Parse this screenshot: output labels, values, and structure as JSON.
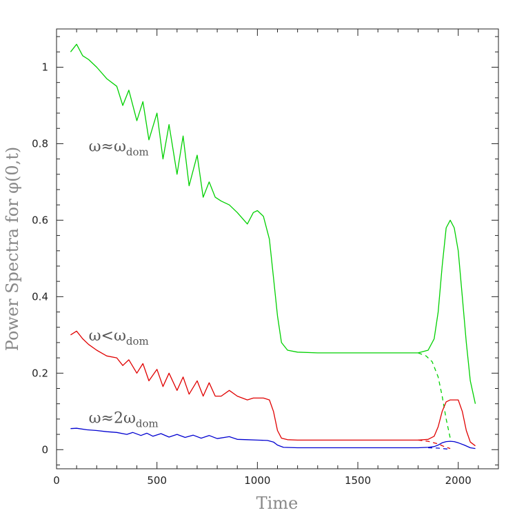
{
  "chart_data": {
    "type": "line",
    "title": "",
    "xlabel": "Time",
    "ylabel": "Power Spectra for φ(0,t)",
    "xlim": [
      0,
      2200
    ],
    "ylim": [
      -0.05,
      1.1
    ],
    "x_ticks": [
      0,
      500,
      1000,
      1500,
      2000
    ],
    "y_ticks": [
      0,
      0.2,
      0.4,
      0.6,
      0.8,
      1
    ],
    "x_tick_labels": [
      "0",
      "500",
      "1000",
      "1500",
      "2000"
    ],
    "y_tick_labels": [
      "0",
      "0.2",
      "0.4",
      "0.6",
      "0.8",
      "1"
    ],
    "grid": false,
    "annotations": [
      {
        "main": "ω≈ω",
        "sub": "dom",
        "series": "green"
      },
      {
        "main": "ω<ω",
        "sub": "dom",
        "series": "red"
      },
      {
        "main": "ω≈2ω",
        "sub": "dom",
        "series": "blue"
      }
    ],
    "series": [
      {
        "color": "#00d000",
        "style": "solid",
        "x": [
          70,
          100,
          130,
          160,
          200,
          250,
          300,
          330,
          360,
          400,
          430,
          460,
          500,
          530,
          560,
          600,
          630,
          660,
          700,
          730,
          760,
          790,
          820,
          860,
          900,
          950,
          980,
          1000,
          1030,
          1060,
          1080,
          1100,
          1120,
          1150,
          1200,
          1300,
          1500,
          1700,
          1800,
          1850,
          1880,
          1900,
          1920,
          1940,
          1960,
          1980,
          2000,
          2020,
          2040,
          2060,
          2085
        ],
        "y": [
          1.04,
          1.06,
          1.03,
          1.02,
          1.0,
          0.97,
          0.95,
          0.9,
          0.94,
          0.86,
          0.91,
          0.81,
          0.88,
          0.76,
          0.85,
          0.72,
          0.82,
          0.69,
          0.77,
          0.66,
          0.7,
          0.66,
          0.65,
          0.64,
          0.62,
          0.59,
          0.62,
          0.625,
          0.61,
          0.55,
          0.45,
          0.35,
          0.28,
          0.26,
          0.255,
          0.253,
          0.253,
          0.253,
          0.253,
          0.26,
          0.29,
          0.36,
          0.48,
          0.58,
          0.6,
          0.58,
          0.52,
          0.4,
          0.28,
          0.18,
          0.12
        ]
      },
      {
        "color": "#00d000",
        "style": "dashed",
        "x": [
          1800,
          1840,
          1870,
          1900,
          1920,
          1940,
          1960
        ],
        "y": [
          0.253,
          0.245,
          0.23,
          0.19,
          0.14,
          0.08,
          0.03
        ]
      },
      {
        "color": "#e00000",
        "style": "solid",
        "x": [
          70,
          100,
          130,
          160,
          200,
          250,
          300,
          330,
          360,
          400,
          430,
          460,
          500,
          530,
          560,
          600,
          630,
          660,
          700,
          730,
          760,
          790,
          820,
          860,
          900,
          950,
          980,
          1000,
          1030,
          1060,
          1080,
          1100,
          1120,
          1150,
          1200,
          1300,
          1500,
          1700,
          1800,
          1850,
          1880,
          1900,
          1920,
          1940,
          1960,
          1980,
          2000,
          2020,
          2040,
          2060,
          2085
        ],
        "y": [
          0.3,
          0.31,
          0.29,
          0.275,
          0.26,
          0.245,
          0.24,
          0.22,
          0.235,
          0.2,
          0.225,
          0.18,
          0.21,
          0.165,
          0.2,
          0.155,
          0.19,
          0.145,
          0.18,
          0.14,
          0.175,
          0.14,
          0.14,
          0.155,
          0.14,
          0.13,
          0.135,
          0.135,
          0.135,
          0.13,
          0.1,
          0.05,
          0.03,
          0.026,
          0.025,
          0.025,
          0.025,
          0.025,
          0.025,
          0.027,
          0.035,
          0.06,
          0.1,
          0.125,
          0.13,
          0.13,
          0.13,
          0.1,
          0.05,
          0.02,
          0.01
        ]
      },
      {
        "color": "#e00000",
        "style": "dashed",
        "x": [
          1800,
          1850,
          1900,
          1930,
          1960
        ],
        "y": [
          0.025,
          0.022,
          0.015,
          0.008,
          0.003
        ]
      },
      {
        "color": "#0000d0",
        "style": "solid",
        "x": [
          70,
          100,
          150,
          200,
          250,
          300,
          350,
          380,
          420,
          450,
          480,
          520,
          560,
          600,
          640,
          680,
          720,
          760,
          800,
          860,
          900,
          950,
          1000,
          1050,
          1080,
          1100,
          1130,
          1200,
          1300,
          1500,
          1700,
          1800,
          1850,
          1880,
          1900,
          1920,
          1940,
          1960,
          1980,
          2000,
          2030,
          2060,
          2085
        ],
        "y": [
          0.055,
          0.056,
          0.052,
          0.05,
          0.047,
          0.045,
          0.04,
          0.045,
          0.037,
          0.043,
          0.035,
          0.042,
          0.033,
          0.04,
          0.032,
          0.038,
          0.03,
          0.037,
          0.029,
          0.034,
          0.027,
          0.026,
          0.025,
          0.024,
          0.02,
          0.012,
          0.006,
          0.005,
          0.005,
          0.005,
          0.005,
          0.005,
          0.006,
          0.008,
          0.012,
          0.018,
          0.021,
          0.022,
          0.021,
          0.018,
          0.012,
          0.005,
          0.003
        ]
      },
      {
        "color": "#0000d0",
        "style": "dashed",
        "x": [
          1850,
          1900,
          1940,
          1960
        ],
        "y": [
          0.005,
          0.004,
          0.002,
          0.001
        ]
      }
    ]
  }
}
